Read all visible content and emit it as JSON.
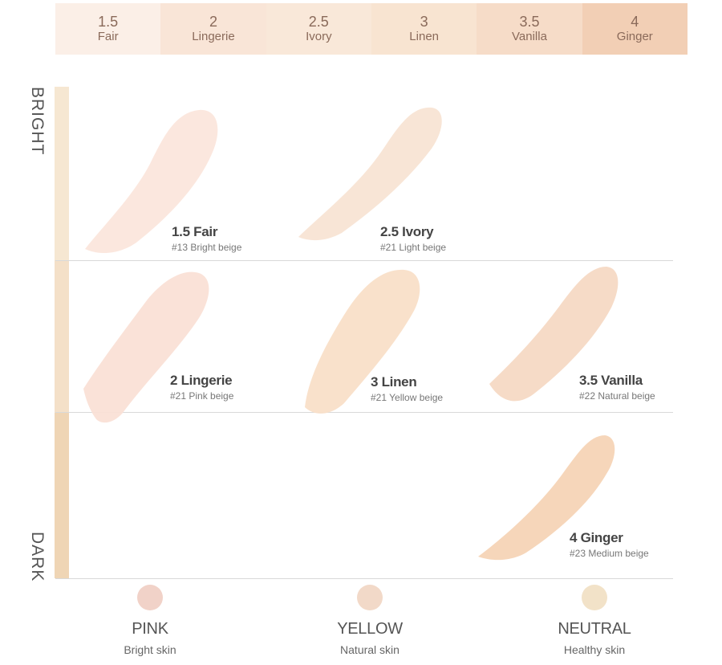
{
  "shades": [
    {
      "num": "1.5",
      "name": "Fair",
      "bg": "#fbefe7"
    },
    {
      "num": "2",
      "name": "Lingerie",
      "bg": "#f9e5d7"
    },
    {
      "num": "2.5",
      "name": "Ivory",
      "bg": "#f9e8d9"
    },
    {
      "num": "3",
      "name": "Linen",
      "bg": "#f8e4d1"
    },
    {
      "num": "3.5",
      "name": "Vanilla",
      "bg": "#f6dcc8"
    },
    {
      "num": "4",
      "name": "Ginger",
      "bg": "#f2cfb5"
    }
  ],
  "axis": {
    "bright": "BRIGHT",
    "dark": "DARK"
  },
  "swatches": [
    {
      "name": "1.5 Fair",
      "desc": "#13 Bright beige",
      "color": "#fbe6dc"
    },
    {
      "name": "2.5 Ivory",
      "desc": "#21 Light beige",
      "color": "#f8e4d4"
    },
    {
      "name": "2 Lingerie",
      "desc": "#21 Pink beige",
      "color": "#fae0d6"
    },
    {
      "name": "3 Linen",
      "desc": "#21 Yellow beige",
      "color": "#f9dfc8"
    },
    {
      "name": "3.5 Vanilla",
      "desc": "#22 Natural beige",
      "color": "#f5d9c4"
    },
    {
      "name": "4 Ginger",
      "desc": "#23 Medium beige",
      "color": "#f5d4b6"
    }
  ],
  "tones": [
    {
      "name": "PINK",
      "desc": "Bright skin",
      "color": "#f1d2c8"
    },
    {
      "name": "YELLOW",
      "desc": "Natural skin",
      "color": "#f2d9c8"
    },
    {
      "name": "NEUTRAL",
      "desc": "Healthy skin",
      "color": "#f2e2c8"
    }
  ]
}
